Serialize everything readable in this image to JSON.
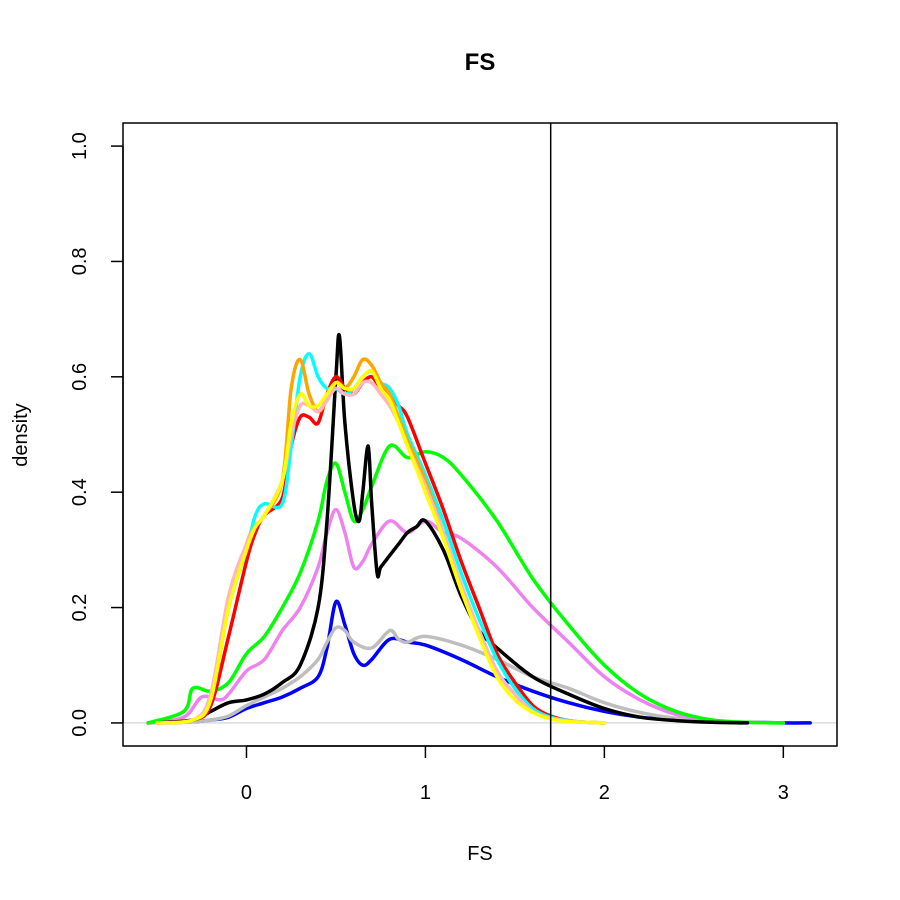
{
  "chart_data": {
    "type": "line",
    "title": "FS",
    "xlabel": "FS",
    "ylabel": "density",
    "xlim": [
      -0.69,
      3.3
    ],
    "ylim": [
      -0.04,
      1.04
    ],
    "xticks": [
      0,
      1,
      2,
      3
    ],
    "yticks": [
      0.0,
      0.2,
      0.4,
      0.6,
      0.8,
      1.0
    ],
    "xtick_labels": [
      "0",
      "1",
      "2",
      "3"
    ],
    "ytick_labels": [
      "0.0",
      "0.2",
      "0.4",
      "0.6",
      "0.8",
      "1.0"
    ],
    "grid": false,
    "legend": "none",
    "baseline": {
      "y": 0,
      "color": "#dddddd"
    },
    "vline": {
      "x": 1.7,
      "color": "#000000"
    },
    "series": [
      {
        "color": "#0000ff",
        "x": [
          -0.55,
          -0.3,
          -0.2,
          -0.1,
          0,
          0.1,
          0.2,
          0.3,
          0.4,
          0.45,
          0.5,
          0.55,
          0.6,
          0.65,
          0.7,
          0.8,
          0.9,
          1.0,
          1.2,
          1.4,
          1.6,
          1.8,
          2.0,
          2.2,
          2.4,
          2.6,
          2.8,
          3.0,
          3.15
        ],
        "y": [
          0,
          0.002,
          0.005,
          0.01,
          0.025,
          0.035,
          0.045,
          0.06,
          0.08,
          0.13,
          0.21,
          0.17,
          0.12,
          0.1,
          0.11,
          0.145,
          0.14,
          0.135,
          0.11,
          0.08,
          0.055,
          0.035,
          0.02,
          0.01,
          0.005,
          0.002,
          0.001,
          0,
          0
        ]
      },
      {
        "color": "#bebebe",
        "x": [
          -0.55,
          -0.3,
          -0.2,
          -0.1,
          0,
          0.1,
          0.2,
          0.3,
          0.4,
          0.45,
          0.5,
          0.55,
          0.6,
          0.7,
          0.8,
          0.85,
          0.9,
          1.0,
          1.2,
          1.4,
          1.6,
          1.8,
          2.0,
          2.2,
          2.4,
          2.6,
          2.8,
          3.0
        ],
        "y": [
          0,
          0.002,
          0.005,
          0.012,
          0.03,
          0.045,
          0.06,
          0.08,
          0.11,
          0.14,
          0.165,
          0.16,
          0.14,
          0.13,
          0.16,
          0.145,
          0.14,
          0.15,
          0.135,
          0.11,
          0.08,
          0.06,
          0.035,
          0.018,
          0.008,
          0.003,
          0.001,
          0
        ]
      },
      {
        "color": "#ee82ee",
        "x": [
          -0.55,
          -0.35,
          -0.25,
          -0.15,
          -0.1,
          0,
          0.1,
          0.2,
          0.3,
          0.4,
          0.45,
          0.5,
          0.55,
          0.6,
          0.65,
          0.7,
          0.8,
          0.9,
          1.0,
          1.1,
          1.2,
          1.4,
          1.6,
          1.8,
          2.0,
          2.2,
          2.4,
          2.6,
          2.8,
          3.0
        ],
        "y": [
          0,
          0.01,
          0.045,
          0.04,
          0.05,
          0.09,
          0.11,
          0.16,
          0.2,
          0.27,
          0.33,
          0.37,
          0.33,
          0.27,
          0.28,
          0.31,
          0.35,
          0.33,
          0.35,
          0.33,
          0.32,
          0.27,
          0.2,
          0.14,
          0.08,
          0.04,
          0.015,
          0.005,
          0.001,
          0
        ]
      },
      {
        "color": "#00ff00",
        "x": [
          -0.55,
          -0.35,
          -0.3,
          -0.2,
          -0.1,
          0,
          0.1,
          0.2,
          0.3,
          0.4,
          0.45,
          0.5,
          0.55,
          0.6,
          0.65,
          0.7,
          0.8,
          0.9,
          1.0,
          1.1,
          1.2,
          1.4,
          1.6,
          1.8,
          2.0,
          2.2,
          2.4,
          2.6,
          2.8,
          3.0
        ],
        "y": [
          0,
          0.02,
          0.06,
          0.055,
          0.07,
          0.12,
          0.15,
          0.2,
          0.26,
          0.35,
          0.42,
          0.45,
          0.4,
          0.35,
          0.37,
          0.41,
          0.48,
          0.46,
          0.47,
          0.46,
          0.43,
          0.35,
          0.25,
          0.17,
          0.1,
          0.05,
          0.02,
          0.005,
          0.001,
          0
        ]
      },
      {
        "color": "#000000",
        "x": [
          -0.5,
          -0.3,
          -0.2,
          -0.1,
          0,
          0.1,
          0.2,
          0.3,
          0.4,
          0.45,
          0.5,
          0.52,
          0.55,
          0.6,
          0.63,
          0.65,
          0.68,
          0.7,
          0.73,
          0.75,
          0.8,
          0.85,
          0.9,
          0.95,
          1.0,
          1.1,
          1.2,
          1.3,
          1.4,
          1.6,
          1.8,
          2.0,
          2.2,
          2.4,
          2.6,
          2.8
        ],
        "y": [
          0,
          0.005,
          0.02,
          0.035,
          0.04,
          0.05,
          0.07,
          0.1,
          0.2,
          0.35,
          0.6,
          0.67,
          0.52,
          0.38,
          0.35,
          0.4,
          0.48,
          0.38,
          0.26,
          0.27,
          0.29,
          0.31,
          0.33,
          0.34,
          0.35,
          0.3,
          0.22,
          0.16,
          0.13,
          0.08,
          0.05,
          0.025,
          0.01,
          0.004,
          0.001,
          0
        ]
      },
      {
        "color": "#ff0000",
        "x": [
          -0.5,
          -0.3,
          -0.2,
          -0.1,
          0,
          0.05,
          0.1,
          0.2,
          0.25,
          0.3,
          0.35,
          0.4,
          0.45,
          0.5,
          0.55,
          0.6,
          0.65,
          0.7,
          0.75,
          0.8,
          0.85,
          0.9,
          1.0,
          1.1,
          1.2,
          1.3,
          1.4,
          1.5,
          1.6,
          1.7,
          1.8,
          1.9,
          2.0
        ],
        "y": [
          0,
          0.005,
          0.03,
          0.15,
          0.28,
          0.33,
          0.36,
          0.39,
          0.48,
          0.53,
          0.53,
          0.52,
          0.57,
          0.6,
          0.58,
          0.57,
          0.59,
          0.6,
          0.58,
          0.57,
          0.55,
          0.53,
          0.45,
          0.37,
          0.28,
          0.2,
          0.12,
          0.07,
          0.03,
          0.012,
          0.004,
          0.001,
          0
        ]
      },
      {
        "color": "#00ffff",
        "x": [
          -0.5,
          -0.3,
          -0.2,
          -0.1,
          0,
          0.05,
          0.1,
          0.2,
          0.25,
          0.3,
          0.35,
          0.4,
          0.45,
          0.5,
          0.55,
          0.6,
          0.65,
          0.7,
          0.75,
          0.8,
          0.85,
          0.9,
          1.0,
          1.1,
          1.2,
          1.3,
          1.4,
          1.5,
          1.6,
          1.7,
          1.8,
          1.9,
          2.0
        ],
        "y": [
          0,
          0.005,
          0.04,
          0.2,
          0.3,
          0.36,
          0.38,
          0.38,
          0.48,
          0.6,
          0.64,
          0.6,
          0.58,
          0.58,
          0.57,
          0.58,
          0.6,
          0.61,
          0.59,
          0.58,
          0.55,
          0.5,
          0.43,
          0.35,
          0.26,
          0.18,
          0.11,
          0.06,
          0.025,
          0.01,
          0.004,
          0.001,
          0
        ]
      },
      {
        "color": "#ffa500",
        "x": [
          -0.5,
          -0.3,
          -0.2,
          -0.1,
          0,
          0.05,
          0.1,
          0.2,
          0.25,
          0.3,
          0.35,
          0.4,
          0.45,
          0.5,
          0.55,
          0.6,
          0.65,
          0.7,
          0.75,
          0.8,
          0.85,
          0.9,
          1.0,
          1.1,
          1.2,
          1.3,
          1.4,
          1.5,
          1.6,
          1.7,
          1.8,
          1.9,
          2.0
        ],
        "y": [
          0,
          0.005,
          0.04,
          0.2,
          0.31,
          0.34,
          0.36,
          0.42,
          0.58,
          0.63,
          0.57,
          0.54,
          0.56,
          0.59,
          0.58,
          0.6,
          0.63,
          0.62,
          0.59,
          0.57,
          0.53,
          0.49,
          0.42,
          0.33,
          0.24,
          0.16,
          0.09,
          0.05,
          0.02,
          0.008,
          0.003,
          0.001,
          0
        ]
      },
      {
        "color": "#ffb6c1",
        "x": [
          -0.5,
          -0.3,
          -0.2,
          -0.1,
          0,
          0.05,
          0.1,
          0.2,
          0.25,
          0.3,
          0.35,
          0.4,
          0.45,
          0.5,
          0.55,
          0.6,
          0.65,
          0.7,
          0.75,
          0.8,
          0.85,
          0.9,
          1.0,
          1.1,
          1.2,
          1.3,
          1.4,
          1.5,
          1.6,
          1.7,
          1.8,
          1.9,
          2.0
        ],
        "y": [
          0,
          0.005,
          0.05,
          0.22,
          0.31,
          0.34,
          0.36,
          0.42,
          0.5,
          0.55,
          0.55,
          0.54,
          0.56,
          0.58,
          0.57,
          0.57,
          0.59,
          0.59,
          0.57,
          0.55,
          0.52,
          0.48,
          0.41,
          0.33,
          0.24,
          0.16,
          0.09,
          0.05,
          0.02,
          0.008,
          0.003,
          0.001,
          0
        ]
      },
      {
        "color": "#ffff00",
        "x": [
          -0.5,
          -0.3,
          -0.2,
          -0.1,
          0,
          0.05,
          0.1,
          0.2,
          0.25,
          0.3,
          0.35,
          0.4,
          0.45,
          0.5,
          0.55,
          0.6,
          0.65,
          0.7,
          0.75,
          0.8,
          0.85,
          0.9,
          1.0,
          1.1,
          1.2,
          1.3,
          1.4,
          1.5,
          1.6,
          1.7,
          1.8,
          1.9,
          2.0
        ],
        "y": [
          0,
          0.005,
          0.04,
          0.2,
          0.3,
          0.34,
          0.36,
          0.42,
          0.52,
          0.57,
          0.55,
          0.55,
          0.57,
          0.59,
          0.58,
          0.58,
          0.6,
          0.61,
          0.58,
          0.56,
          0.52,
          0.48,
          0.4,
          0.32,
          0.23,
          0.15,
          0.08,
          0.04,
          0.018,
          0.007,
          0.002,
          0.001,
          0
        ]
      }
    ]
  }
}
